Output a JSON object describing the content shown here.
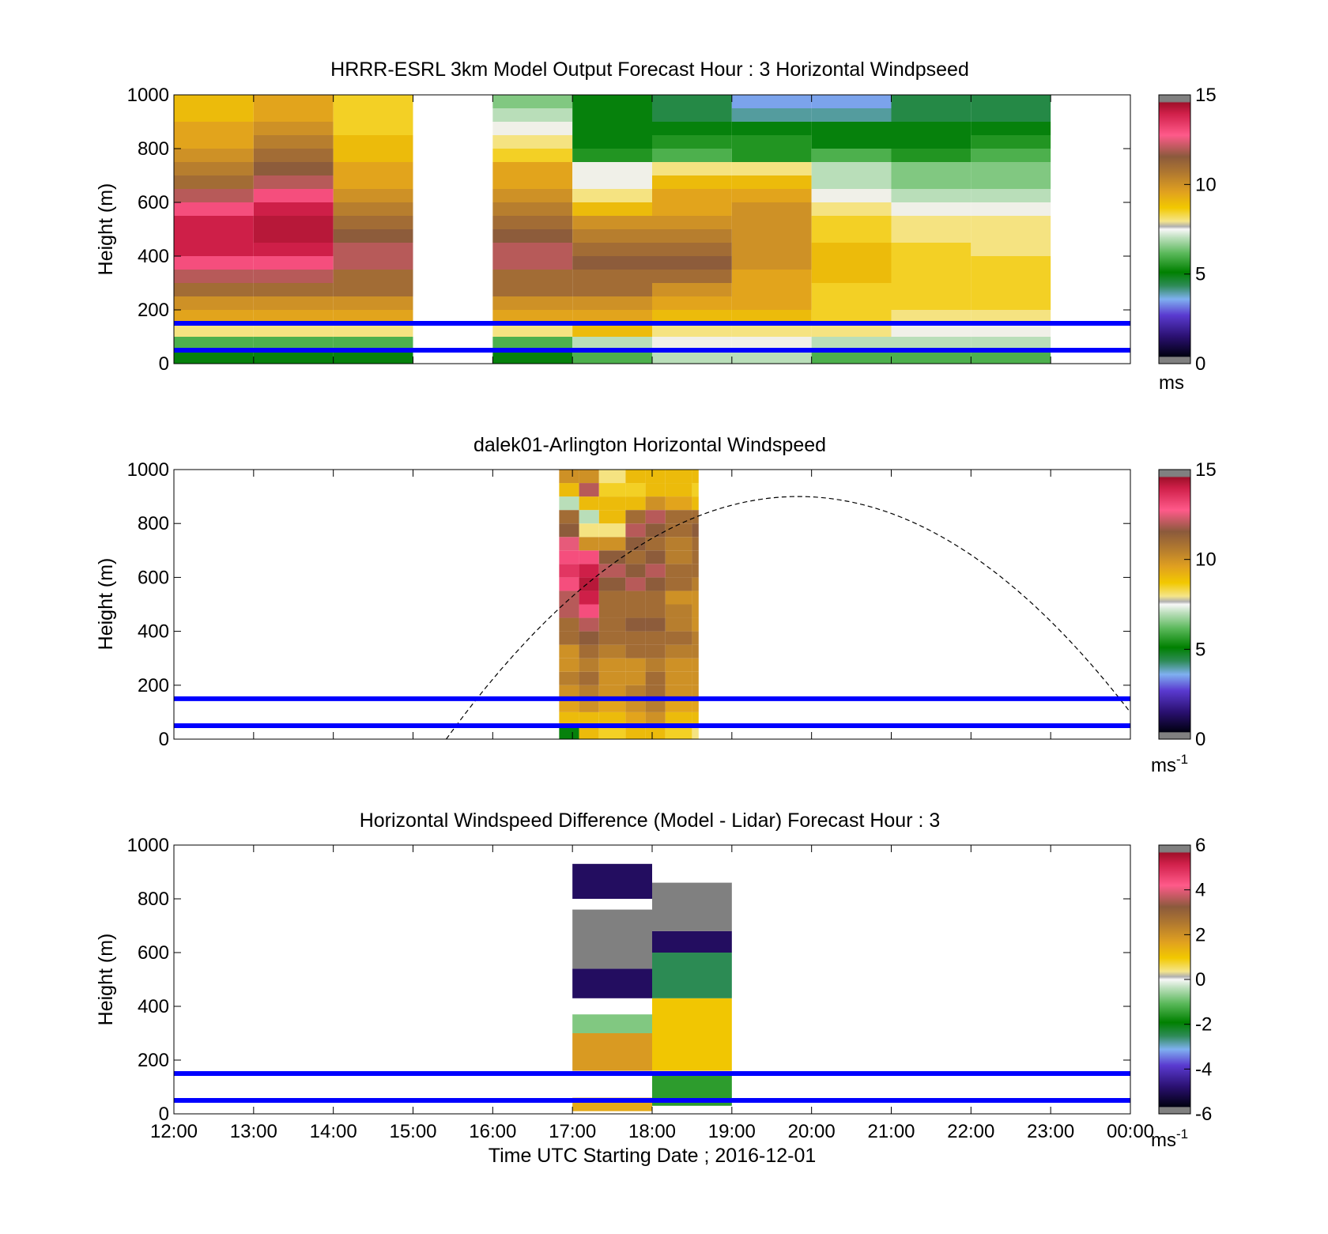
{
  "figure": {
    "xlabel": "Time UTC  Starting Date ; 2016-12-01",
    "x_ticks": [
      "12:00",
      "13:00",
      "14:00",
      "15:00",
      "16:00",
      "17:00",
      "18:00",
      "19:00",
      "20:00",
      "21:00",
      "22:00",
      "23:00",
      "00:00"
    ],
    "colors": {
      "hub_lines": "#0000ff",
      "sun_curve": "#000000",
      "colormap": [
        "#000000",
        "#1a0a4a",
        "#4b1fa8",
        "#5a7fe0",
        "#7fb0f0",
        "#2e8b57",
        "#008000",
        "#4caf50",
        "#a8d8a8",
        "#f0f0f0",
        "#f5e58a",
        "#f2c800",
        "#e0a020",
        "#b07830",
        "#8b5a3c",
        "#c0506a",
        "#ff5a8a",
        "#d0204a",
        "#808080"
      ]
    }
  },
  "chart_data": [
    {
      "type": "heatmap",
      "title": "HRRR-ESRL 3km Model Output   Forecast Hour : 3 Horizontal Windpseed",
      "ylabel": "Height (m)",
      "colorbar_label": "ms",
      "colorbar_ticks": [
        "0",
        "5",
        "10",
        "15"
      ],
      "clim": [
        0,
        15
      ],
      "xlim": [
        "12:00",
        "00:00"
      ],
      "ylim": [
        0,
        1000
      ],
      "y_ticks": [
        "0",
        "200",
        "400",
        "600",
        "800",
        "1000"
      ],
      "hub_heights_m": [
        50,
        150
      ],
      "columns": [
        {
          "start": "12:00",
          "end": "13:00",
          "speeds_bottom_to_top": [
            5,
            6,
            8,
            9.5,
            10,
            11,
            12,
            13,
            14,
            14,
            14,
            13,
            12,
            11,
            10.5,
            10,
            9.5,
            9.5,
            9,
            9
          ]
        },
        {
          "start": "13:00",
          "end": "14:00",
          "speeds_bottom_to_top": [
            5,
            6,
            8,
            9.5,
            10,
            11,
            12,
            13,
            14,
            14.5,
            14.5,
            14,
            13,
            12,
            11.5,
            11,
            10.5,
            10,
            9.5,
            9.5
          ]
        },
        {
          "start": "14:00",
          "end": "15:00",
          "speeds_bottom_to_top": [
            5,
            6,
            8,
            9.5,
            10,
            11,
            11,
            12,
            12,
            11.5,
            11,
            10.5,
            10,
            9.5,
            9.5,
            9,
            9,
            8.5,
            8.5,
            8.5
          ]
        },
        {
          "start": "16:00",
          "end": "17:00",
          "speeds_bottom_to_top": [
            5,
            6,
            8,
            9.5,
            10,
            11,
            11,
            12,
            12,
            11.5,
            11,
            10.5,
            10,
            9.5,
            9.5,
            8.5,
            8,
            7.5,
            7,
            6.5
          ]
        },
        {
          "start": "17:00",
          "end": "18:00",
          "speeds_bottom_to_top": [
            6,
            7,
            9,
            9.5,
            10,
            11,
            11,
            11.5,
            11,
            10.5,
            10,
            9,
            8,
            7.5,
            7.5,
            5.5,
            5,
            5,
            5,
            5
          ]
        },
        {
          "start": "18:00",
          "end": "19:00",
          "speeds_bottom_to_top": [
            7,
            7.5,
            8,
            9,
            9.5,
            10,
            11,
            11.5,
            11,
            10.5,
            10,
            9.5,
            9.5,
            9,
            8,
            6,
            5.5,
            5,
            4.5,
            4.5
          ]
        },
        {
          "start": "19:00",
          "end": "20:00",
          "speeds_bottom_to_top": [
            7,
            7.5,
            8,
            9,
            9.5,
            9.5,
            9.5,
            10,
            10,
            10,
            10,
            10,
            9.5,
            9,
            8,
            5.5,
            5.5,
            5,
            4,
            3.5
          ]
        },
        {
          "start": "20:00",
          "end": "21:00",
          "speeds_bottom_to_top": [
            6,
            7,
            8,
            8.5,
            8.5,
            8.5,
            9,
            9,
            9,
            8.5,
            8.5,
            8,
            7.5,
            7,
            7,
            6,
            5,
            5,
            4,
            3.5
          ]
        },
        {
          "start": "21:00",
          "end": "22:00",
          "speeds_bottom_to_top": [
            6,
            7,
            7.5,
            8,
            8.5,
            8.5,
            8.5,
            8.5,
            8.5,
            8,
            8,
            7.5,
            7,
            6.5,
            6.5,
            5.5,
            5,
            5,
            4.5,
            4.5
          ]
        },
        {
          "start": "22:00",
          "end": "23:00",
          "speeds_bottom_to_top": [
            6,
            7,
            7.5,
            8,
            8.5,
            8.5,
            8.5,
            8.5,
            8,
            8,
            8,
            7.5,
            7,
            6.5,
            6.5,
            6,
            5.5,
            5,
            4.5,
            4.5
          ]
        }
      ]
    },
    {
      "type": "heatmap",
      "title": "dalek01-Arlington  Horizontal Windspeed",
      "ylabel": "Height (m)",
      "colorbar_label": "ms",
      "colorbar_label_sup": "-1",
      "colorbar_ticks": [
        "0",
        "5",
        "10",
        "15"
      ],
      "clim": [
        0,
        15
      ],
      "xlim": [
        "12:00",
        "00:00"
      ],
      "ylim": [
        0,
        1000
      ],
      "y_ticks": [
        "0",
        "200",
        "400",
        "600",
        "800",
        "1000"
      ],
      "hub_heights_m": [
        50,
        150
      ],
      "sun_elevation_curve": {
        "start": "15:25",
        "peak_time": "19:50",
        "peak_height_m": 900,
        "end": "00:00",
        "end_height_m": 80
      },
      "columns": [
        {
          "start": "16:50",
          "end": "17:05",
          "speeds_bottom_to_top": [
            5,
            9,
            9.5,
            10,
            10.5,
            10,
            10,
            11,
            11,
            12,
            12,
            13,
            13.5,
            13,
            12.5,
            11.5,
            11,
            7,
            9,
            10
          ]
        },
        {
          "start": "17:05",
          "end": "17:20",
          "speeds_bottom_to_top": [
            9,
            9,
            10,
            10.5,
            11,
            10.5,
            11,
            11.5,
            12,
            13,
            14,
            14.5,
            14,
            13,
            10,
            8,
            7,
            9,
            12,
            10
          ]
        },
        {
          "start": "17:20",
          "end": "17:40",
          "speeds_bottom_to_top": [
            8.5,
            9,
            9.5,
            10,
            10,
            10,
            10.5,
            11,
            11,
            11,
            11,
            11.5,
            12,
            11.5,
            10,
            8,
            9,
            9,
            8.5,
            8
          ]
        },
        {
          "start": "17:40",
          "end": "17:55",
          "speeds_bottom_to_top": [
            9,
            9.5,
            10,
            10.5,
            10,
            10,
            11,
            11,
            11.5,
            11,
            11,
            12,
            11.5,
            11,
            11.5,
            12,
            11,
            9,
            8.5,
            9
          ]
        },
        {
          "start": "17:55",
          "end": "18:10",
          "speeds_bottom_to_top": [
            9,
            10,
            10.5,
            11,
            11,
            10.5,
            11,
            11,
            11.5,
            11,
            11,
            11.5,
            12,
            11.5,
            11,
            11.5,
            12,
            10,
            9,
            9
          ]
        },
        {
          "start": "18:10",
          "end": "18:30",
          "speeds_bottom_to_top": [
            8.5,
            9,
            9.5,
            10,
            10,
            10,
            10.5,
            11,
            10.5,
            10.5,
            10,
            11,
            11,
            10.5,
            10.5,
            11,
            11,
            9.5,
            9,
            9
          ]
        },
        {
          "start": "18:30",
          "end": "18:35",
          "speeds_bottom_to_top": [
            8,
            9,
            9.5,
            10,
            10,
            10,
            10.5,
            10.5,
            10,
            10,
            10,
            10.5,
            11,
            11,
            11,
            11.5,
            11,
            9,
            8.5,
            9
          ]
        }
      ]
    },
    {
      "type": "heatmap",
      "title": "Horizontal Windspeed Difference (Model - Lidar) Forecast Hour : 3",
      "ylabel": "Height (m)",
      "colorbar_label": "ms",
      "colorbar_label_sup": "-1",
      "colorbar_ticks": [
        "-6",
        "-4",
        "-2",
        "0",
        "2",
        "4",
        "6"
      ],
      "clim": [
        -6,
        6
      ],
      "xlim": [
        "12:00",
        "00:00"
      ],
      "ylim": [
        0,
        1000
      ],
      "y_ticks": [
        "0",
        "200",
        "400",
        "600",
        "800",
        "1000"
      ],
      "hub_heights_m": [
        50,
        150
      ],
      "columns": [
        {
          "start": "17:00",
          "end": "18:00",
          "segments": [
            {
              "from": 10,
              "to": 60,
              "diff": 1.5
            },
            {
              "from": 160,
              "to": 300,
              "diff": 1.8
            },
            {
              "from": 300,
              "to": 370,
              "diff": -0.8
            },
            {
              "from": 430,
              "to": 540,
              "diff": -5
            },
            {
              "from": 540,
              "to": 760,
              "diff": -7
            },
            {
              "from": 800,
              "to": 930,
              "diff": -5
            }
          ]
        },
        {
          "start": "18:00",
          "end": "19:00",
          "segments": [
            {
              "from": 30,
              "to": 150,
              "diff": -1.5
            },
            {
              "from": 160,
              "to": 430,
              "diff": 1
            },
            {
              "from": 430,
              "to": 600,
              "diff": -2.5
            },
            {
              "from": 600,
              "to": 680,
              "diff": -5
            },
            {
              "from": 680,
              "to": 860,
              "diff": -7
            }
          ]
        }
      ]
    }
  ]
}
